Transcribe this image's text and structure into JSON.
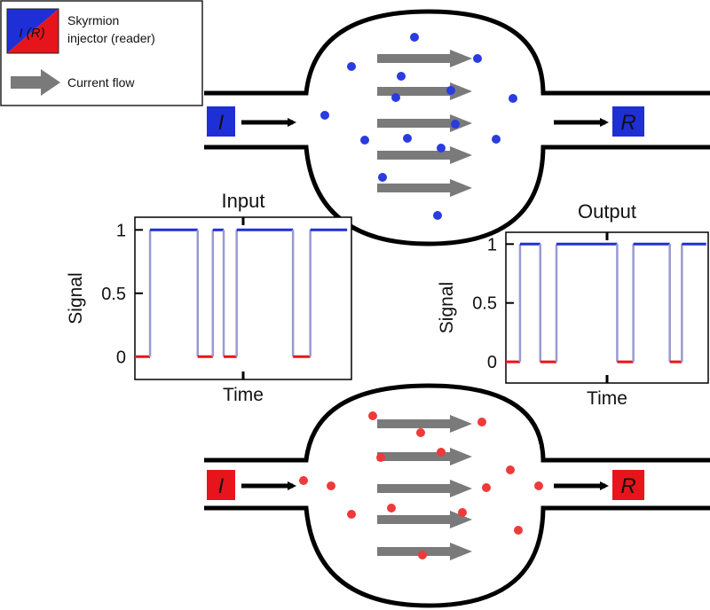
{
  "legend": {
    "skyrmion_line1": "Skyrmion",
    "skyrmion_line2": "injector (reader)",
    "icon_text": "I (R)",
    "current_flow": "Current flow"
  },
  "top_device": {
    "injector_label": "I",
    "reader_label": "R",
    "color": "#1f2fd6",
    "dot_color": "#2a3be0"
  },
  "bottom_device": {
    "injector_label": "I",
    "reader_label": "R",
    "color": "#e8141c",
    "dot_color": "#ee3a3a"
  },
  "colors": {
    "high": "#1f2fd6",
    "low": "#e8141c",
    "transition": "#9a9ad2",
    "arrow": "#7a7a7a"
  },
  "chart_data": [
    {
      "type": "line",
      "title": "Input",
      "xlabel": "Time",
      "ylabel": "Signal",
      "yticks": [
        "0",
        "0.5",
        "1"
      ],
      "ylim": [
        -0.18,
        1.1
      ],
      "xlim": [
        0,
        1
      ],
      "steps": [
        {
          "t0": 0.0,
          "t1": 0.07,
          "v": 0
        },
        {
          "t0": 0.07,
          "t1": 0.29,
          "v": 1
        },
        {
          "t0": 0.29,
          "t1": 0.36,
          "v": 0
        },
        {
          "t0": 0.36,
          "t1": 0.41,
          "v": 1
        },
        {
          "t0": 0.41,
          "t1": 0.47,
          "v": 0
        },
        {
          "t0": 0.47,
          "t1": 0.73,
          "v": 1
        },
        {
          "t0": 0.73,
          "t1": 0.81,
          "v": 0
        },
        {
          "t0": 0.81,
          "t1": 0.98,
          "v": 1
        }
      ]
    },
    {
      "type": "line",
      "title": "Output",
      "xlabel": "Time",
      "ylabel": "Signal",
      "yticks": [
        "0",
        "0.5",
        "1"
      ],
      "ylim": [
        -0.18,
        1.1
      ],
      "xlim": [
        0,
        1
      ],
      "steps": [
        {
          "t0": 0.0,
          "t1": 0.07,
          "v": 0
        },
        {
          "t0": 0.07,
          "t1": 0.17,
          "v": 1
        },
        {
          "t0": 0.17,
          "t1": 0.25,
          "v": 0
        },
        {
          "t0": 0.25,
          "t1": 0.55,
          "v": 1
        },
        {
          "t0": 0.55,
          "t1": 0.63,
          "v": 0
        },
        {
          "t0": 0.63,
          "t1": 0.81,
          "v": 1
        },
        {
          "t0": 0.81,
          "t1": 0.87,
          "v": 0
        },
        {
          "t0": 0.87,
          "t1": 0.99,
          "v": 1
        }
      ]
    }
  ]
}
